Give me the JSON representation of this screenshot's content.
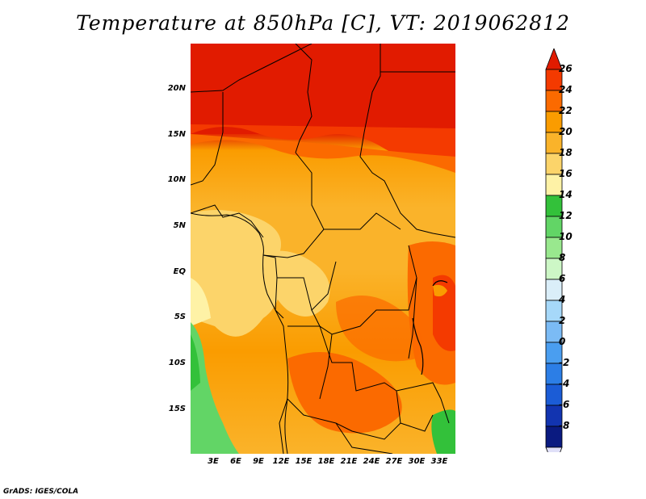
{
  "title": "Temperature at 850hPa [C], VT: 2019062812",
  "credit": "GrADS: IGES/COLA",
  "map": {
    "lat_labels": [
      "20N",
      "15N",
      "10N",
      "5N",
      "EQ",
      "5S",
      "10S",
      "15S"
    ],
    "lat_values": [
      20,
      15,
      10,
      5,
      0,
      -5,
      -10,
      -15
    ],
    "lon_labels": [
      "3E",
      "6E",
      "9E",
      "12E",
      "15E",
      "18E",
      "21E",
      "24E",
      "27E",
      "30E",
      "33E"
    ],
    "lon_values": [
      3,
      6,
      9,
      12,
      15,
      18,
      21,
      24,
      27,
      30,
      33
    ],
    "lon_range": [
      0,
      35
    ],
    "lat_range": [
      -20,
      25
    ]
  },
  "colorbar": {
    "levels": [
      "26",
      "24",
      "22",
      "20",
      "18",
      "16",
      "14",
      "12",
      "10",
      "8",
      "6",
      "4",
      "2",
      "0",
      "-2",
      "-4",
      "-6",
      "-8"
    ],
    "colors": [
      "#e11b00",
      "#f43a00",
      "#fb6a00",
      "#fa9c00",
      "#fab32a",
      "#fcd46a",
      "#fef2a6",
      "#33c13a",
      "#62d566",
      "#99e88e",
      "#cdf7c6",
      "#daeef9",
      "#a6d8f9",
      "#7bbbf5",
      "#4a9ef0",
      "#2c7ee6",
      "#1b5cd6",
      "#1234b0",
      "#0a1a80"
    ],
    "under_color": "#e0e0f8"
  }
}
